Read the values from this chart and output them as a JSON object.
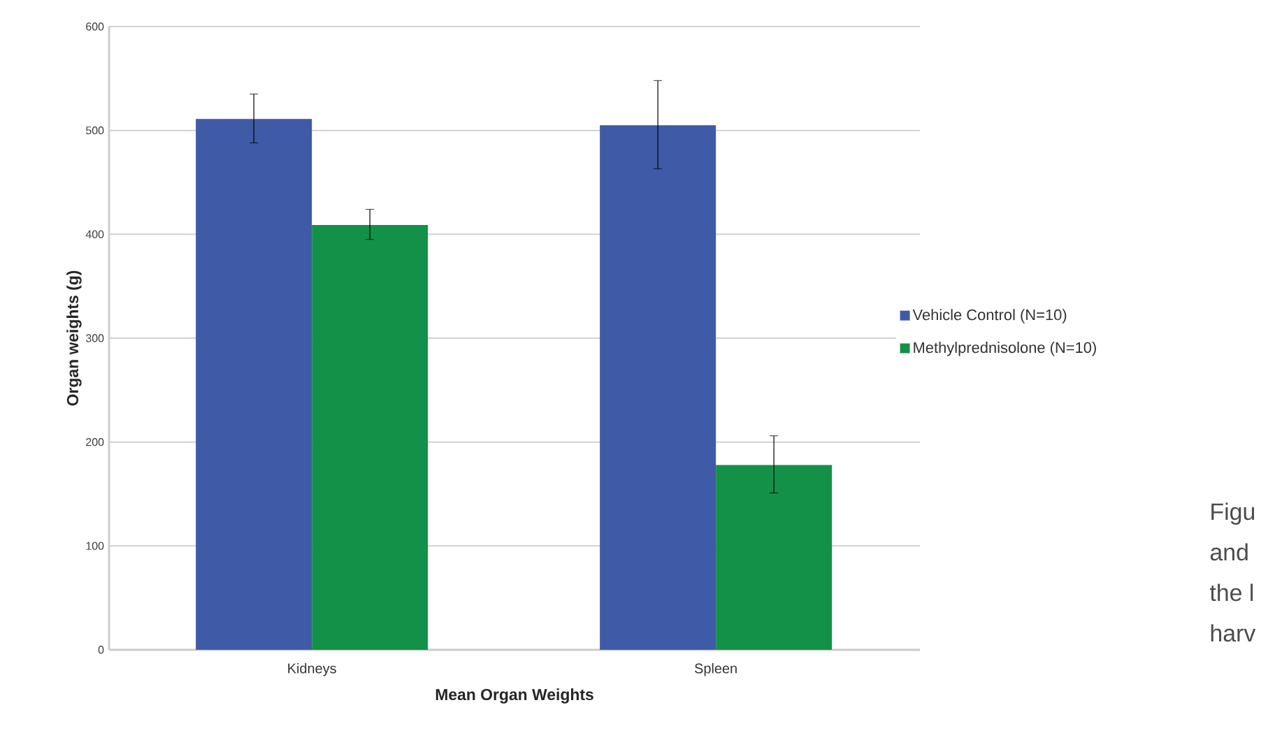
{
  "chart_data": {
    "type": "bar",
    "xlabel": "Mean Organ Weights",
    "ylabel": "Organ weights (g)",
    "categories": [
      "Kidneys",
      "Spleen"
    ],
    "series": [
      {
        "name": "Vehicle Control (N=10)",
        "color": "#3f5aa6",
        "values": [
          511,
          505
        ],
        "errors": [
          [
            488,
            535
          ],
          [
            463,
            548
          ]
        ]
      },
      {
        "name": "Methylprednisolone (N=10)",
        "color": "#149148",
        "values": [
          409,
          178
        ],
        "errors": [
          [
            395,
            424
          ],
          [
            151,
            206
          ]
        ]
      }
    ],
    "ylim": [
      0,
      600
    ],
    "yticks": [
      0,
      100,
      200,
      300,
      400,
      500,
      600
    ],
    "grid": "y",
    "legend": "right",
    "annotations": [
      "Figu",
      "and",
      "the l",
      "harv"
    ]
  }
}
